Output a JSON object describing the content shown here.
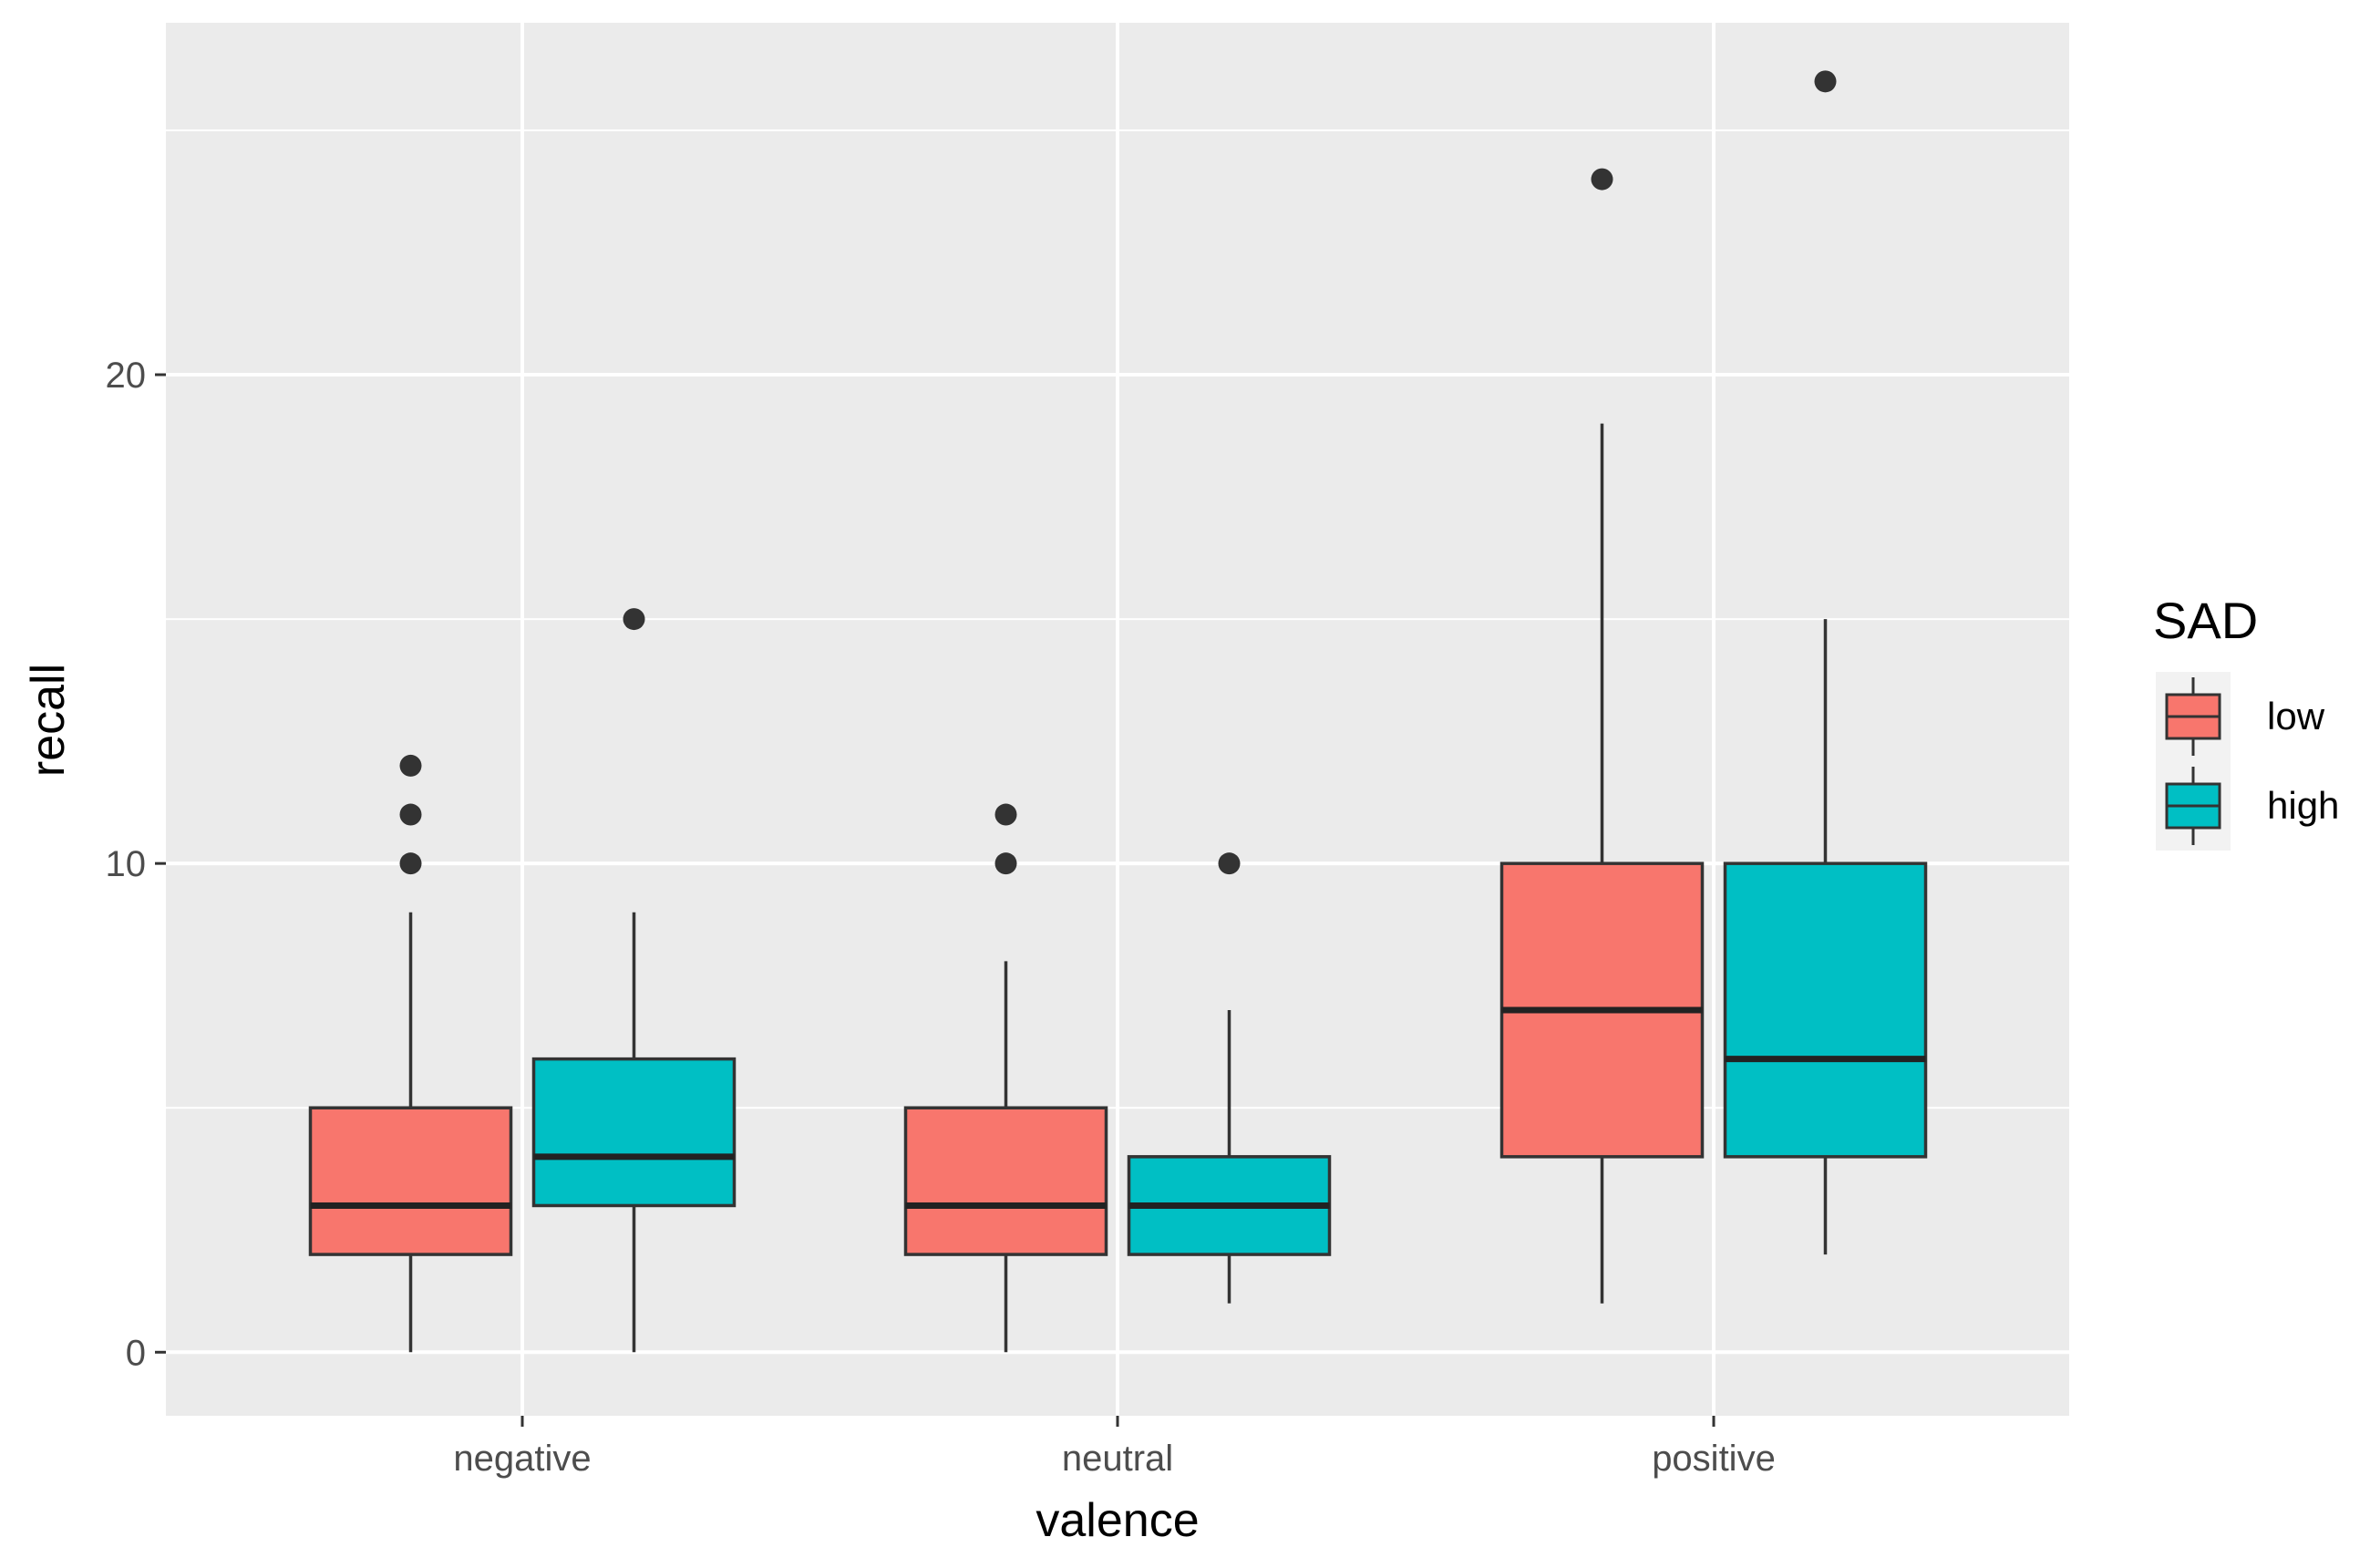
{
  "chart_data": {
    "type": "boxplot",
    "title": "",
    "xlabel": "valence",
    "ylabel": "recall",
    "categories": [
      "negative",
      "neutral",
      "positive"
    ],
    "ylim": [
      -1.3,
      27.2
    ],
    "yticks": [
      0,
      10,
      20
    ],
    "ytick_labels": [
      "0",
      "10",
      "20"
    ],
    "grid": true,
    "legend": {
      "title": "SAD",
      "position": "right"
    },
    "series": [
      {
        "name": "low",
        "color": "#F8766D",
        "boxes": [
          {
            "category": "negative",
            "min": 0,
            "q1": 2,
            "median": 3,
            "q3": 5,
            "max": 9,
            "outliers": [
              10,
              11,
              12
            ]
          },
          {
            "category": "neutral",
            "min": 0,
            "q1": 2,
            "median": 3,
            "q3": 5,
            "max": 8,
            "outliers": [
              10,
              11
            ]
          },
          {
            "category": "positive",
            "min": 1,
            "q1": 4,
            "median": 7,
            "q3": 10,
            "max": 19,
            "outliers": [
              24
            ]
          }
        ]
      },
      {
        "name": "high",
        "color": "#00BFC4",
        "boxes": [
          {
            "category": "negative",
            "min": 0,
            "q1": 3,
            "median": 4,
            "q3": 6,
            "max": 9,
            "outliers": [
              15
            ]
          },
          {
            "category": "neutral",
            "min": 1,
            "q1": 2,
            "median": 3,
            "q3": 4,
            "max": 7,
            "outliers": [
              10
            ]
          },
          {
            "category": "positive",
            "min": 2,
            "q1": 4,
            "median": 6,
            "q3": 10,
            "max": 15,
            "outliers": [
              26
            ]
          }
        ]
      }
    ]
  }
}
